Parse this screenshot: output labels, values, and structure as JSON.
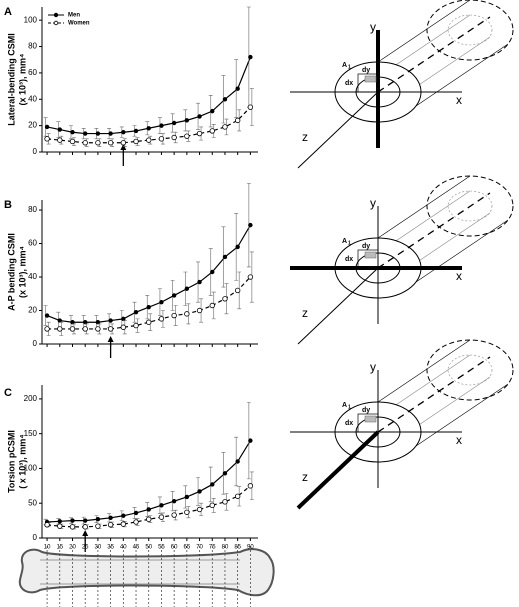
{
  "chart_data": [
    {
      "type": "line",
      "panel": "A",
      "ylabel": [
        "Lateral-bending CSMI",
        "(x 10³), mm⁴"
      ],
      "x": [
        10,
        15,
        20,
        25,
        30,
        35,
        40,
        45,
        50,
        55,
        60,
        65,
        70,
        75,
        80,
        85,
        90
      ],
      "xlim": [
        8,
        93
      ],
      "xticks": [
        10,
        15,
        20,
        25,
        30,
        35,
        40,
        45,
        50,
        55,
        60,
        65,
        70,
        75,
        80,
        85,
        90
      ],
      "xtick_labels": false,
      "ylim": [
        0,
        110
      ],
      "yticks": [
        0,
        20,
        40,
        60,
        80,
        100
      ],
      "arrow_x": 40,
      "legend": "top-left",
      "series": [
        {
          "name": "Men",
          "color": "#000000",
          "dash": false,
          "values": [
            19,
            17,
            15,
            14,
            14,
            14,
            15,
            16,
            18,
            20,
            22,
            24,
            27,
            31,
            40,
            48,
            72
          ],
          "errors": [
            7,
            6,
            5,
            4,
            4,
            4,
            4,
            4,
            5,
            6,
            7,
            8,
            10,
            12,
            18,
            22,
            38
          ]
        },
        {
          "name": "Women",
          "color": "#000000",
          "dash": true,
          "values": [
            10,
            9,
            8,
            7,
            7,
            7,
            7,
            8,
            9,
            10,
            11,
            12,
            14,
            16,
            19,
            24,
            34
          ],
          "errors": [
            4,
            3,
            3,
            3,
            3,
            3,
            3,
            3,
            3,
            4,
            4,
            4,
            5,
            5,
            6,
            8,
            14
          ]
        }
      ]
    },
    {
      "type": "line",
      "panel": "B",
      "ylabel": [
        "A-P bending CSMI",
        "(x 10³), mm⁴"
      ],
      "x": [
        10,
        15,
        20,
        25,
        30,
        35,
        40,
        45,
        50,
        55,
        60,
        65,
        70,
        75,
        80,
        85,
        90
      ],
      "xlim": [
        8,
        93
      ],
      "xticks": [
        10,
        15,
        20,
        25,
        30,
        35,
        40,
        45,
        50,
        55,
        60,
        65,
        70,
        75,
        80,
        85,
        90
      ],
      "xtick_labels": false,
      "ylim": [
        0,
        86
      ],
      "yticks": [
        0,
        20,
        40,
        60,
        80
      ],
      "arrow_x": 35,
      "series": [
        {
          "name": "Men",
          "color": "#000000",
          "dash": false,
          "values": [
            17,
            14,
            13,
            13,
            13,
            14,
            15,
            19,
            22,
            25,
            29,
            33,
            37,
            43,
            52,
            58,
            71
          ],
          "errors": [
            6,
            5,
            4,
            4,
            4,
            4,
            5,
            6,
            7,
            8,
            9,
            10,
            12,
            14,
            18,
            20,
            25
          ]
        },
        {
          "name": "Women",
          "color": "#000000",
          "dash": true,
          "values": [
            9,
            9,
            9,
            9,
            9,
            9,
            10,
            11,
            13,
            15,
            17,
            18,
            20,
            23,
            27,
            32,
            40
          ],
          "errors": [
            4,
            4,
            3,
            3,
            3,
            3,
            4,
            4,
            5,
            5,
            6,
            6,
            7,
            8,
            9,
            11,
            15
          ]
        }
      ]
    },
    {
      "type": "line",
      "panel": "C",
      "ylabel": [
        "Torsion pCSMI",
        "( x 10³), mm⁴"
      ],
      "x": [
        10,
        15,
        20,
        25,
        30,
        35,
        40,
        45,
        50,
        55,
        60,
        65,
        70,
        75,
        80,
        85,
        90
      ],
      "xlim": [
        8,
        93
      ],
      "xticks": [
        10,
        15,
        20,
        25,
        30,
        35,
        40,
        45,
        50,
        55,
        60,
        65,
        70,
        75,
        80,
        85,
        90
      ],
      "xtick_labels": true,
      "ylim": [
        0,
        220
      ],
      "yticks": [
        0,
        50,
        100,
        150,
        200
      ],
      "arrow_x": 25,
      "series": [
        {
          "name": "Men",
          "color": "#000000",
          "dash": false,
          "values": [
            23,
            24,
            25,
            25,
            27,
            29,
            32,
            36,
            41,
            47,
            53,
            59,
            67,
            77,
            93,
            110,
            140
          ],
          "errors": [
            4,
            4,
            4,
            5,
            5,
            6,
            7,
            8,
            10,
            12,
            14,
            16,
            20,
            25,
            30,
            35,
            55
          ]
        },
        {
          "name": "Women",
          "color": "#000000",
          "dash": true,
          "values": [
            19,
            17,
            16,
            16,
            17,
            19,
            20,
            23,
            27,
            30,
            33,
            37,
            41,
            47,
            52,
            60,
            75
          ],
          "errors": [
            3,
            3,
            3,
            3,
            3,
            4,
            4,
            5,
            5,
            6,
            7,
            8,
            9,
            10,
            12,
            14,
            20
          ]
        }
      ]
    }
  ],
  "diagrams": [
    {
      "bold_axis": "y",
      "labels": {
        "y": "y",
        "x": "x",
        "z": "z",
        "a": "A",
        "a_sub": "1",
        "dy": "dy",
        "dx": "dx"
      }
    },
    {
      "bold_axis": "x",
      "labels": {
        "y": "y",
        "x": "x",
        "z": "z",
        "a": "A",
        "a_sub": "1",
        "dy": "dy",
        "dx": "dx"
      }
    },
    {
      "bold_axis": "z",
      "labels": {
        "y": "y",
        "x": "x",
        "z": "z",
        "a": "A",
        "a_sub": "1",
        "dy": "dy",
        "dx": "dx"
      }
    }
  ]
}
